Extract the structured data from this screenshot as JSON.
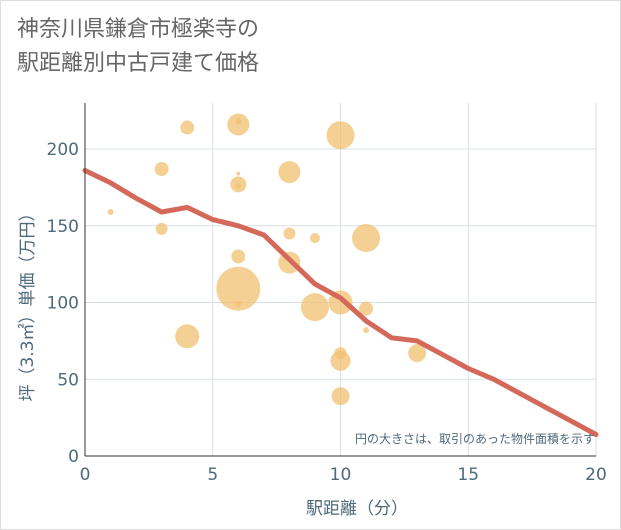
{
  "title_line1": "神奈川県鎌倉市極楽寺の",
  "title_line2": "駅距離別中古戸建て価格",
  "chart_data": {
    "type": "scatter",
    "xlabel": "駅距離（分）",
    "ylabel": "坪（3.3㎡）単価（万円）",
    "xlim": [
      0,
      20
    ],
    "ylim": [
      0,
      230
    ],
    "x_ticks": [
      "0",
      "5",
      "10",
      "15",
      "20"
    ],
    "y_ticks": [
      "0",
      "50",
      "100",
      "150",
      "200"
    ],
    "grid": true,
    "note": "円の大きさは、取引のあった物件面積を示す",
    "bubble_color": "#f2c070",
    "line_color": "#d4695a",
    "points": [
      {
        "x": 1,
        "y": 159,
        "r": 3
      },
      {
        "x": 3,
        "y": 187,
        "r": 7
      },
      {
        "x": 3,
        "y": 148,
        "r": 6
      },
      {
        "x": 4,
        "y": 214,
        "r": 7
      },
      {
        "x": 4,
        "y": 78,
        "r": 12
      },
      {
        "x": 6,
        "y": 216,
        "r": 11
      },
      {
        "x": 6,
        "y": 218,
        "r": 3
      },
      {
        "x": 6,
        "y": 184,
        "r": 2
      },
      {
        "x": 6,
        "y": 177,
        "r": 8
      },
      {
        "x": 6,
        "y": 176,
        "r": 3
      },
      {
        "x": 6,
        "y": 130,
        "r": 7
      },
      {
        "x": 6,
        "y": 109,
        "r": 22
      },
      {
        "x": 6,
        "y": 99,
        "r": 3
      },
      {
        "x": 8,
        "y": 185,
        "r": 11
      },
      {
        "x": 8,
        "y": 145,
        "r": 6
      },
      {
        "x": 8,
        "y": 126,
        "r": 11
      },
      {
        "x": 9,
        "y": 142,
        "r": 5
      },
      {
        "x": 9,
        "y": 97,
        "r": 14
      },
      {
        "x": 10,
        "y": 209,
        "r": 14
      },
      {
        "x": 10,
        "y": 100,
        "r": 12
      },
      {
        "x": 10,
        "y": 67,
        "r": 6
      },
      {
        "x": 10,
        "y": 62,
        "r": 10
      },
      {
        "x": 10,
        "y": 39,
        "r": 9
      },
      {
        "x": 11,
        "y": 142,
        "r": 14
      },
      {
        "x": 11,
        "y": 96,
        "r": 7
      },
      {
        "x": 11,
        "y": 82,
        "r": 3
      },
      {
        "x": 13,
        "y": 67,
        "r": 9
      }
    ],
    "trend_line": {
      "x": [
        0,
        1,
        2,
        3,
        4,
        5,
        6,
        7,
        8,
        9,
        10,
        11,
        12,
        13,
        14,
        15,
        16,
        17,
        18,
        19,
        20
      ],
      "y": [
        186,
        178,
        168,
        159,
        162,
        154,
        150,
        144,
        128,
        112,
        103,
        88,
        77,
        75,
        66,
        57,
        50,
        41,
        32,
        23,
        14
      ]
    }
  }
}
